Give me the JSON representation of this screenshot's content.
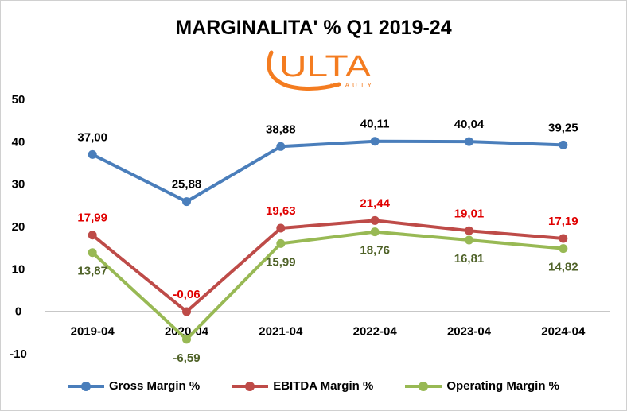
{
  "chart_data": {
    "type": "line",
    "title": "MARGINALITA' % Q1 2019-24",
    "categories": [
      "2019-04",
      "2020-04",
      "2021-04",
      "2022-04",
      "2023-04",
      "2024-04"
    ],
    "ylim": [
      -10,
      50
    ],
    "yticks": [
      "50",
      "40",
      "30",
      "20",
      "10",
      "0",
      "-10"
    ],
    "grid": false,
    "legend_position": "bottom",
    "series": [
      {
        "name": "Gross Margin %",
        "color": "#4a7ebb",
        "label_color": "#000000",
        "values": [
          37.0,
          25.88,
          38.88,
          40.11,
          40.04,
          39.25
        ],
        "labels": [
          "37,00",
          "25,88",
          "38,88",
          "40,11",
          "40,04",
          "39,25"
        ]
      },
      {
        "name": "EBITDA Margin %",
        "color": "#be4b48",
        "label_color": "#e00000",
        "values": [
          17.99,
          -0.06,
          19.63,
          21.44,
          19.01,
          17.19
        ],
        "labels": [
          "17,99",
          "-0,06",
          "19,63",
          "21,44",
          "19,01",
          "17,19"
        ]
      },
      {
        "name": "Operating Margin %",
        "color": "#98b954",
        "label_color": "#4f6228",
        "values": [
          13.87,
          -6.59,
          15.99,
          18.76,
          16.81,
          14.82
        ],
        "labels": [
          "13,87",
          "-6,59",
          "15,99",
          "18,76",
          "16,81",
          "14,82"
        ]
      }
    ]
  },
  "logo": {
    "main_text": "ULTA",
    "sub_text": "BEAUTY",
    "color": "#f47c20"
  }
}
